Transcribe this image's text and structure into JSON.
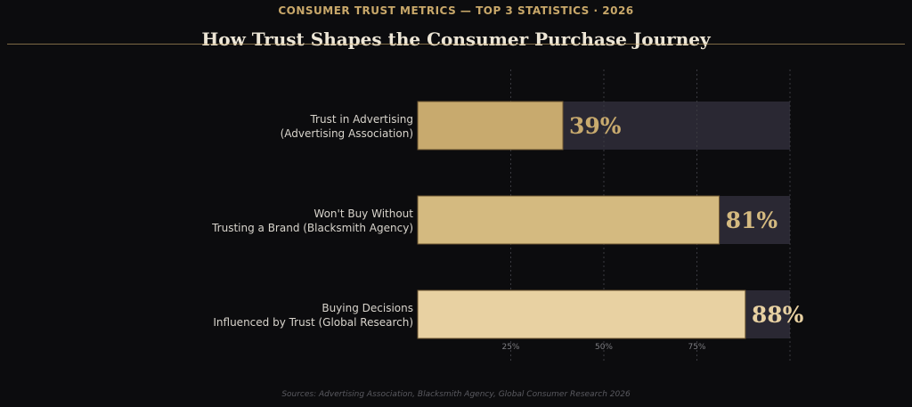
{
  "header": {
    "supertitle": "CONSUMER TRUST METRICS — TOP 3 STATISTICS · 2026",
    "title": "How Trust Shapes the Consumer Purchase Journey"
  },
  "footer": {
    "source": "Sources: Advertising Association, Blacksmith Agency, Global Consumer Research 2026"
  },
  "colors": {
    "background": "#0c0c0e",
    "accent": "#c9a86a",
    "track": "#2a2833",
    "grid": "#3a3a40",
    "tick_label": "#7d7d82",
    "category_label": "#d8d4cc",
    "bar_edge": "#6b5530"
  },
  "chart_data": {
    "type": "bar",
    "orientation": "horizontal",
    "categories": [
      [
        "Trust in Advertising",
        "(Advertising Association)"
      ],
      [
        "Won't Buy Without",
        "Trusting a Brand (Blacksmith Agency)"
      ],
      [
        "Buying Decisions",
        "Influenced by Trust (Global Research)"
      ]
    ],
    "values": [
      39,
      81,
      88
    ],
    "value_labels": [
      "39%",
      "81%",
      "88%"
    ],
    "bar_colors": [
      "#c8aa6e",
      "#d4ba80",
      "#e8d1a2"
    ],
    "xlim": [
      0,
      100
    ],
    "xticks": [
      25,
      50,
      75
    ],
    "xtick_labels": [
      "25%",
      "50%",
      "75%"
    ],
    "grid": "vertical dotted",
    "title": "How Trust Shapes the Consumer Purchase Journey"
  }
}
